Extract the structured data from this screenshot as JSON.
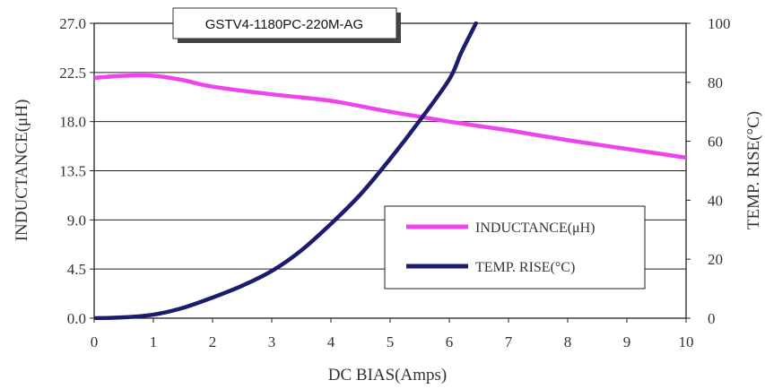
{
  "chart_data": {
    "type": "line",
    "title": "GSTV4-1180PC-220M-AG",
    "xlabel": "DC BIAS(Amps)",
    "ylabel_left": "INDUCTANCE(μH)",
    "ylabel_right": "TEMP. RISE(°C)",
    "xlim": [
      0,
      10
    ],
    "ylim_left": [
      0,
      27
    ],
    "ylim_right": [
      0,
      100
    ],
    "x_ticks": [
      "0",
      "1",
      "2",
      "3",
      "4",
      "5",
      "6",
      "7",
      "8",
      "9",
      "10"
    ],
    "y_left_ticks": [
      "0.0",
      "4.5",
      "9.0",
      "13.5",
      "18.0",
      "22.5",
      "27.0"
    ],
    "y_right_ticks": [
      "0",
      "20",
      "40",
      "60",
      "80",
      "100"
    ],
    "grid": "horizontal",
    "legend_position": "lower-right",
    "series": [
      {
        "name": "INDUCTANCE(μH)",
        "axis": "left",
        "color": "#ee44ee",
        "x": [
          0,
          0.5,
          1,
          1.5,
          2,
          3,
          4,
          5,
          6,
          7,
          8,
          9,
          10
        ],
        "values": [
          22.0,
          22.2,
          22.2,
          21.8,
          21.2,
          20.5,
          19.9,
          18.9,
          18.0,
          17.2,
          16.3,
          15.5,
          14.7
        ]
      },
      {
        "name": "TEMP. RISE(°C)",
        "axis": "right",
        "color": "#1c1c6e",
        "x": [
          0,
          0.5,
          1,
          1.5,
          2,
          2.5,
          3,
          3.5,
          4,
          4.5,
          5,
          5.5,
          6,
          6.2,
          6.45
        ],
        "values": [
          0,
          0.3,
          1.2,
          3.5,
          7,
          11,
          16,
          23,
          32,
          42,
          54,
          67,
          81,
          90,
          100
        ]
      }
    ]
  }
}
